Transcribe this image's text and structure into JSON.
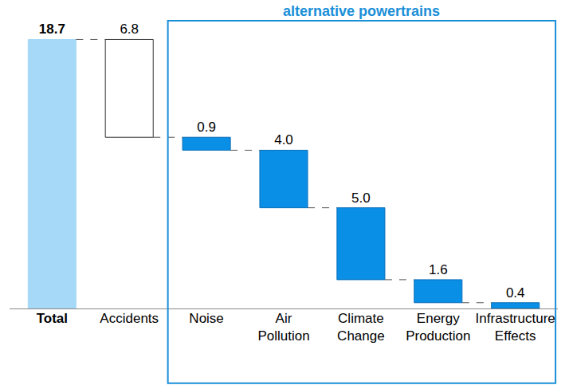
{
  "chart_data": {
    "type": "waterfall",
    "annotation": "alternative powertrains",
    "categories": [
      "Total",
      "Accidents",
      "Noise",
      "Air Pollution",
      "Climate Change",
      "Energy Production",
      "Infrastructure Effects"
    ],
    "values": [
      18.7,
      6.8,
      0.9,
      4.0,
      5.0,
      1.6,
      0.4
    ],
    "value_labels": [
      "18.7",
      "6.8",
      "0.9",
      "4.0",
      "5.0",
      "1.6",
      "0.4"
    ],
    "colors": [
      "#a6d9f7",
      "#ffffff",
      "#0a8fe6",
      "#0a8fe6",
      "#0a8fe6",
      "#0a8fe6",
      "#0a8fe6"
    ],
    "data_labels": true,
    "tick_labels": "x",
    "ylim": [
      0,
      20
    ]
  }
}
